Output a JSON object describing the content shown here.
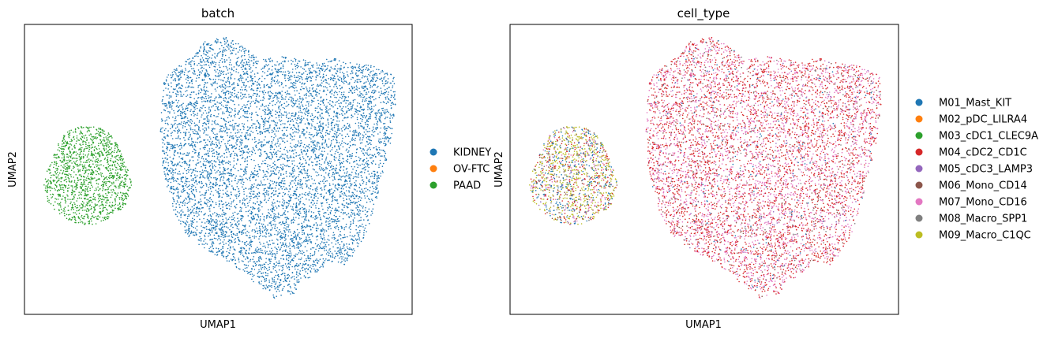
{
  "chart_data": [
    {
      "type": "scatter",
      "title": "batch",
      "xlabel": "UMAP1",
      "ylabel": "UMAP2",
      "grid": false,
      "axis_ticks": false,
      "legend_position": "right",
      "legend": [
        {
          "label": "KIDNEY",
          "color": "#1f77b4"
        },
        {
          "label": "OV-FTC",
          "color": "#ff7f0e"
        },
        {
          "label": "PAAD",
          "color": "#2ca02c"
        }
      ],
      "clusters": [
        {
          "name": "large-cluster",
          "composition": {
            "KIDNEY": 1.0
          }
        },
        {
          "name": "small-cluster",
          "composition": {
            "PAAD": 1.0
          }
        }
      ]
    },
    {
      "type": "scatter",
      "title": "cell_type",
      "xlabel": "UMAP1",
      "ylabel": "UMAP2",
      "grid": false,
      "axis_ticks": false,
      "legend_position": "right",
      "legend": [
        {
          "label": "M01_Mast_KIT",
          "color": "#1f77b4"
        },
        {
          "label": "M02_pDC_LILRA4",
          "color": "#ff7f0e"
        },
        {
          "label": "M03_cDC1_CLEC9A",
          "color": "#2ca02c"
        },
        {
          "label": "M04_cDC2_CD1C",
          "color": "#d62728"
        },
        {
          "label": "M05_cDC3_LAMP3",
          "color": "#9467bd"
        },
        {
          "label": "M06_Mono_CD14",
          "color": "#8c564b"
        },
        {
          "label": "M07_Mono_CD16",
          "color": "#e377c2"
        },
        {
          "label": "M08_Macro_SPP1",
          "color": "#7f7f7f"
        },
        {
          "label": "M09_Macro_C1QC",
          "color": "#bcbd22"
        }
      ],
      "clusters": [
        {
          "name": "large-cluster",
          "composition": {
            "M04_cDC2_CD1C": 0.47,
            "M07_Mono_CD16": 0.4,
            "M06_Mono_CD14": 0.05,
            "M01_Mast_KIT": 0.03,
            "M08_Macro_SPP1": 0.03,
            "M05_cDC3_LAMP3": 0.02
          }
        },
        {
          "name": "small-cluster",
          "composition": {
            "M09_Macro_C1QC": 0.4,
            "M01_Mast_KIT": 0.22,
            "M04_cDC2_CD1C": 0.16,
            "M07_Mono_CD16": 0.1,
            "M06_Mono_CD14": 0.06,
            "M08_Macro_SPP1": 0.04,
            "M05_cDC3_LAMP3": 0.02
          }
        }
      ]
    }
  ]
}
